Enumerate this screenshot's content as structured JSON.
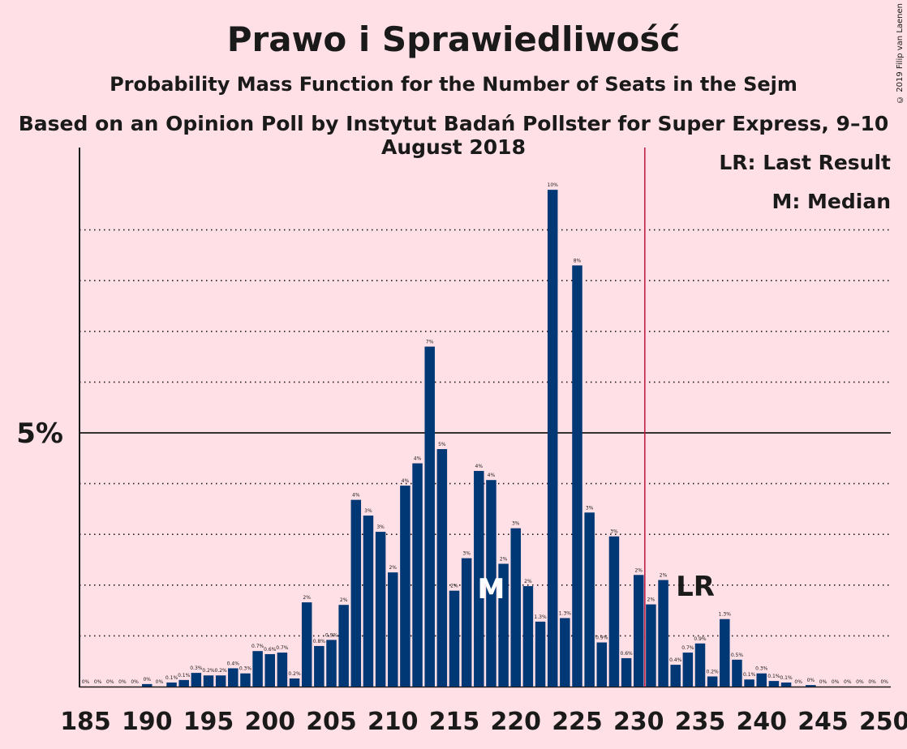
{
  "header": {
    "title": "Prawo i Sprawiedliwość",
    "subtitle": "Probability Mass Function for the Number of Seats in the Sejm",
    "subtitle2": "Based on an Opinion Poll by Instytut Badań Pollster for Super Express, 9–10 August 2018",
    "copyright": "© 2019 Filip van Laenen"
  },
  "legend": {
    "last_result": "LR: Last Result",
    "median": "M: Median"
  },
  "colors": {
    "background": "#ffe0e6",
    "bar": "#003876",
    "majority_line": "#c0143c",
    "text": "#1a1a1a"
  },
  "chart_data": {
    "type": "bar",
    "x": [
      185,
      186,
      187,
      188,
      189,
      190,
      191,
      192,
      193,
      194,
      195,
      196,
      197,
      198,
      199,
      200,
      201,
      202,
      203,
      204,
      205,
      206,
      207,
      208,
      209,
      210,
      211,
      212,
      213,
      214,
      215,
      216,
      217,
      218,
      219,
      220,
      221,
      222,
      223,
      224,
      225,
      226,
      227,
      228,
      229,
      230,
      231,
      232,
      233,
      234,
      235,
      236,
      237,
      238,
      239,
      240,
      241,
      242,
      243,
      244,
      245,
      246,
      247,
      248,
      249,
      250
    ],
    "values": [
      0,
      0,
      0,
      0,
      0,
      0.05,
      0,
      0.08,
      0.13,
      0.27,
      0.22,
      0.22,
      0.36,
      0.26,
      0.7,
      0.64,
      0.67,
      0.16,
      1.66,
      0.8,
      0.92,
      1.61,
      3.68,
      3.37,
      3.05,
      2.25,
      3.96,
      4.4,
      6.7,
      4.68,
      1.89,
      2.53,
      4.25,
      4.07,
      2.42,
      3.12,
      1.98,
      1.28,
      9.79,
      1.35,
      8.3,
      3.43,
      0.87,
      2.96,
      0.56,
      2.2,
      1.62,
      2.1,
      0.43,
      0.67,
      0.85,
      0.2,
      1.33,
      0.53,
      0.14,
      0.26,
      0.11,
      0.08,
      0,
      0.03,
      0,
      0,
      0,
      0,
      0,
      0
    ],
    "labels": [
      "0%",
      "0%",
      "0%",
      "0%",
      "0%",
      "0%",
      "0%",
      "0.1%",
      "0.1%",
      "0.3%",
      "0.2%",
      "0.2%",
      "0.4%",
      "0.3%",
      "0.7%",
      "0.6%",
      "0.7%",
      "0.2%",
      "2%",
      "0.8%",
      "0.9%",
      "2%",
      "4%",
      "3%",
      "3%",
      "2%",
      "4%",
      "4%",
      "7%",
      "5%",
      "2%",
      "3%",
      "4%",
      "4%",
      "2%",
      "3%",
      "2%",
      "1.3%",
      "10%",
      "1.3%",
      "8%",
      "3%",
      "0.9%",
      "3%",
      "0.6%",
      "2%",
      "2%",
      "2%",
      "0.4%",
      "0.7%",
      "0.9%",
      "0.2%",
      "1.3%",
      "0.5%",
      "0.1%",
      "0.3%",
      "0.1%",
      "0.1%",
      "0%",
      "0%",
      "0%",
      "0%",
      "0%",
      "0%",
      "0%",
      "0%"
    ],
    "xticks": [
      "185",
      "190",
      "195",
      "200",
      "205",
      "210",
      "215",
      "220",
      "225",
      "230",
      "235",
      "240",
      "245",
      "250"
    ],
    "ytick_label": "5%",
    "xlim": [
      185,
      250
    ],
    "ylim": [
      0,
      10.6
    ],
    "majority_line_at": 230.5,
    "median_seat": 218,
    "median_label": "M",
    "last_result_seat": 235,
    "last_result_label": "LR",
    "grid": "dotted horizontal at 1% steps"
  }
}
